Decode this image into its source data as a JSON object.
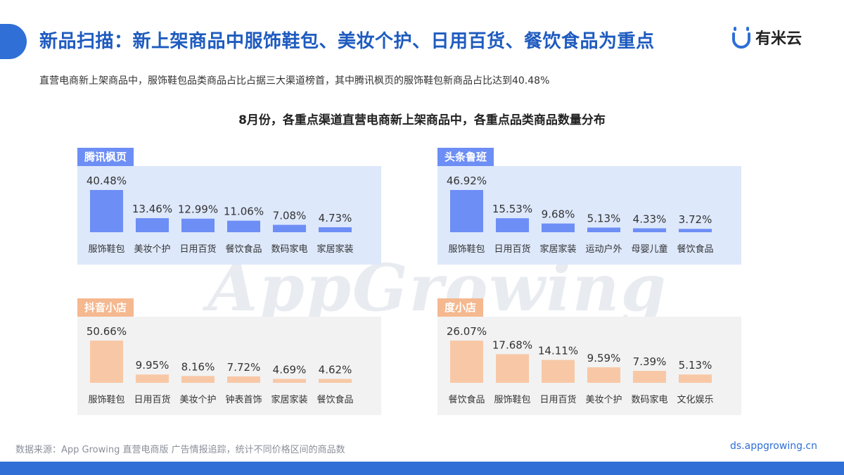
{
  "header": {
    "title": "新品扫描：新上架商品中服饰鞋包、美妆个护、日用百货、餐饮食品为重点",
    "logo_text": "有米云",
    "subtitle": "直营电商新上架商品中，服饰鞋包品类商品占比占据三大渠道榜首，其中腾讯枫页的服饰鞋包新商品占比达到40.48%"
  },
  "watermark": "AppGrowing",
  "colors": {
    "primary": "#2f6fd6",
    "blue_bar": "#6d8ef5",
    "blue_panel_bg": "#dde8fb",
    "peach_bar": "#f8c8a6",
    "peach_label": "#f5b88f",
    "gray_panel_bg": "#f2f2f2"
  },
  "chart_data": [
    {
      "type": "bar",
      "title": "腾讯枫页",
      "categories": [
        "服饰鞋包",
        "美妆个护",
        "日用百货",
        "餐饮食品",
        "数码家电",
        "家居家装"
      ],
      "values": [
        40.48,
        13.46,
        12.99,
        11.06,
        7.08,
        4.73
      ],
      "labels": [
        "40.48%",
        "13.46%",
        "12.99%",
        "11.06%",
        "7.08%",
        "4.73%"
      ],
      "theme": "blue"
    },
    {
      "type": "bar",
      "title": "头条鲁班",
      "categories": [
        "服饰鞋包",
        "日用百货",
        "家居家装",
        "运动户外",
        "母婴儿童",
        "餐饮食品"
      ],
      "values": [
        46.92,
        15.53,
        9.68,
        5.13,
        4.33,
        3.72
      ],
      "labels": [
        "46.92%",
        "15.53%",
        "9.68%",
        "5.13%",
        "4.33%",
        "3.72%"
      ],
      "theme": "blue"
    },
    {
      "type": "bar",
      "title": "抖音小店",
      "categories": [
        "服饰鞋包",
        "日用百货",
        "美妆个护",
        "钟表首饰",
        "家居家装",
        "餐饮食品"
      ],
      "values": [
        50.66,
        9.95,
        8.16,
        7.72,
        4.69,
        4.62
      ],
      "labels": [
        "50.66%",
        "9.95%",
        "8.16%",
        "7.72%",
        "4.69%",
        "4.62%"
      ],
      "theme": "peach"
    },
    {
      "type": "bar",
      "title": "度小店",
      "categories": [
        "餐饮食品",
        "服饰鞋包",
        "日用百货",
        "美妆个护",
        "数码家电",
        "文化娱乐"
      ],
      "values": [
        26.07,
        17.68,
        14.11,
        9.59,
        7.39,
        5.13
      ],
      "labels": [
        "26.07%",
        "17.68%",
        "14.11%",
        "9.59%",
        "7.39%",
        "5.13%"
      ],
      "theme": "peach"
    }
  ],
  "chart_title": "8月份，各重点渠道直营电商新上架商品中，各重点品类商品数量分布",
  "footer": {
    "source": "数据来源：App Growing 直营电商版 广告情报追踪，统计不同价格区间的商品数",
    "url": "ds.appgrowing.cn"
  }
}
